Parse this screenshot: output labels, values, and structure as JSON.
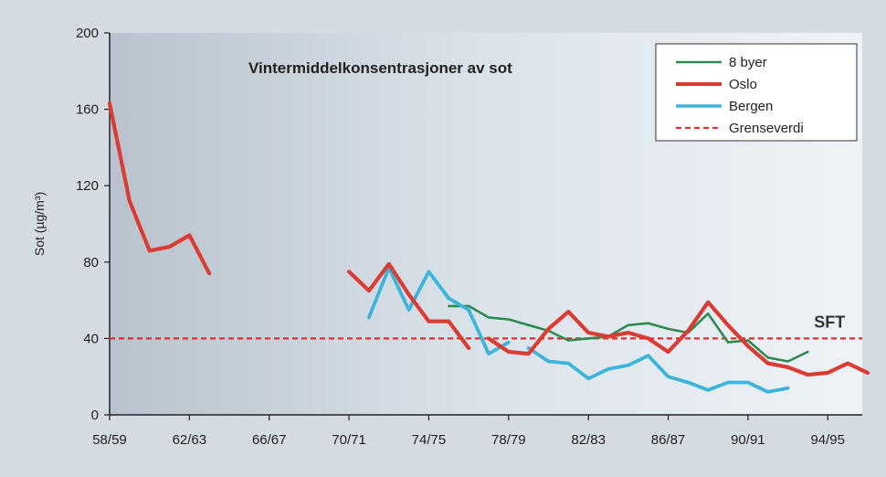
{
  "chart_data": {
    "type": "line",
    "title": "Vintermiddelkonsentrasjoner av sot",
    "ylabel": "Sot (µg/m³)",
    "xlabel": "",
    "ylim": [
      0,
      200
    ],
    "yticks": [
      0,
      40,
      80,
      120,
      160,
      200
    ],
    "x_tick_labels": [
      "58/59",
      "62/63",
      "66/67",
      "70/71",
      "74/75",
      "78/79",
      "82/83",
      "86/87",
      "90/91",
      "94/95"
    ],
    "x_tick_index": [
      0,
      4,
      8,
      12,
      16,
      20,
      24,
      28,
      32,
      36
    ],
    "legend_position": "top-right",
    "grid": false,
    "series": [
      {
        "name": "8 byer",
        "color": "#2e8b4f",
        "points": [
          [
            17,
            57
          ],
          [
            18,
            57
          ],
          [
            19,
            51
          ],
          [
            20,
            50
          ],
          [
            21,
            47
          ],
          [
            22,
            44
          ],
          [
            23,
            39
          ],
          [
            25,
            41
          ],
          [
            26,
            47
          ],
          [
            27,
            48
          ],
          [
            28,
            45
          ],
          [
            29,
            43
          ],
          [
            30,
            53
          ],
          [
            31,
            38
          ],
          [
            32,
            39
          ],
          [
            33,
            30
          ],
          [
            34,
            28
          ],
          [
            35,
            33
          ]
        ]
      },
      {
        "name": "Oslo",
        "color": "#dc3b32",
        "points": [
          [
            0,
            163
          ],
          [
            1,
            112
          ],
          [
            2,
            86
          ],
          [
            3,
            88
          ],
          [
            4,
            94
          ],
          [
            5,
            74
          ],
          null,
          [
            12,
            75
          ],
          [
            13,
            65
          ],
          [
            14,
            79
          ],
          [
            15,
            63
          ],
          [
            16,
            49
          ],
          [
            17,
            49
          ],
          [
            18,
            35
          ],
          null,
          [
            19,
            40
          ],
          [
            20,
            33
          ],
          [
            21,
            32
          ],
          [
            22,
            45
          ],
          [
            23,
            54
          ],
          [
            24,
            43
          ],
          [
            25,
            41
          ],
          [
            26,
            43
          ],
          [
            27,
            40
          ],
          [
            28,
            33
          ],
          [
            29,
            44
          ],
          [
            30,
            59
          ],
          [
            31,
            47
          ],
          [
            32,
            36
          ],
          [
            33,
            27
          ],
          [
            34,
            25
          ],
          [
            35,
            21
          ],
          [
            36,
            22
          ],
          [
            37,
            27
          ],
          [
            38,
            22
          ]
        ]
      },
      {
        "name": "Bergen",
        "color": "#3cb4dc",
        "points": [
          [
            13,
            51
          ],
          [
            14,
            77
          ],
          [
            15,
            55
          ],
          [
            16,
            75
          ],
          [
            17,
            61
          ],
          [
            18,
            55
          ],
          [
            19,
            32
          ],
          [
            20,
            38
          ],
          null,
          [
            21,
            35
          ],
          [
            22,
            28
          ],
          [
            23,
            27
          ],
          [
            24,
            19
          ],
          [
            25,
            24
          ],
          [
            26,
            26
          ],
          [
            27,
            31
          ],
          [
            28,
            20
          ],
          [
            29,
            17
          ],
          [
            30,
            13
          ],
          [
            31,
            17
          ],
          [
            32,
            17
          ],
          [
            33,
            12
          ],
          [
            34,
            14
          ]
        ]
      },
      {
        "name": "Grenseverdi",
        "color": "#dc2f2f",
        "dashed": true,
        "points": [
          [
            0,
            40
          ],
          [
            38,
            40
          ]
        ]
      }
    ],
    "annotations": [
      {
        "text": "SFT",
        "x": 36,
        "y": 40
      }
    ]
  }
}
